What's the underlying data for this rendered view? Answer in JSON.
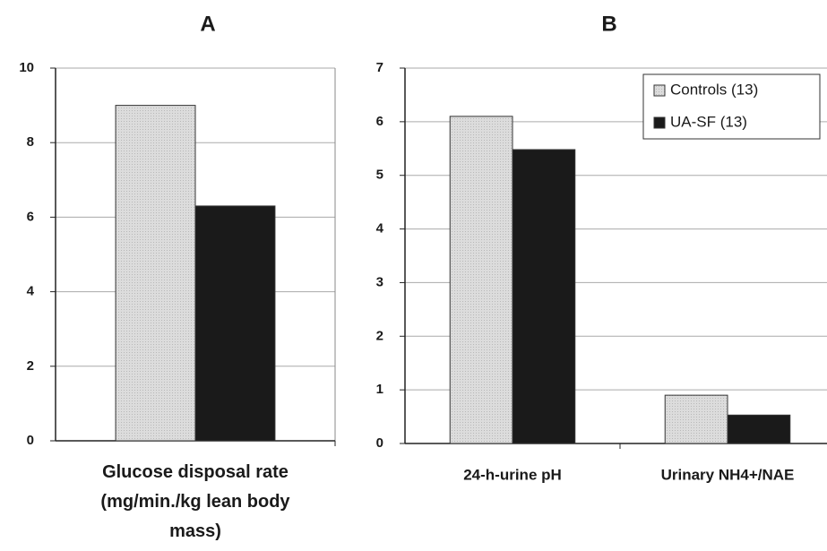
{
  "chart_data": [
    {
      "type": "bar",
      "title": "A",
      "categories": [
        "Glucose disposal rate (mg/min./kg lean body mass)"
      ],
      "series": [
        {
          "color": "#d9d9d9",
          "values": [
            9.0
          ]
        },
        {
          "color": "#1a1a1a",
          "values": [
            6.3
          ]
        }
      ],
      "ylim": [
        0,
        10
      ],
      "yticks": [
        0,
        2,
        4,
        6,
        8,
        10
      ],
      "grid": true
    },
    {
      "type": "bar",
      "title": "B",
      "categories": [
        "24-h-urine pH",
        "Urinary NH4+/NAE"
      ],
      "series": [
        {
          "name": "Controls (13)",
          "color": "#d9d9d9",
          "values": [
            6.1,
            0.9
          ]
        },
        {
          "name": "UA-SF (13)",
          "color": "#1a1a1a",
          "values": [
            5.48,
            0.53
          ]
        }
      ],
      "ylim": [
        0,
        7
      ],
      "yticks": [
        0,
        1,
        2,
        3,
        4,
        5,
        6,
        7
      ],
      "grid": true,
      "legend": "upper right"
    }
  ]
}
